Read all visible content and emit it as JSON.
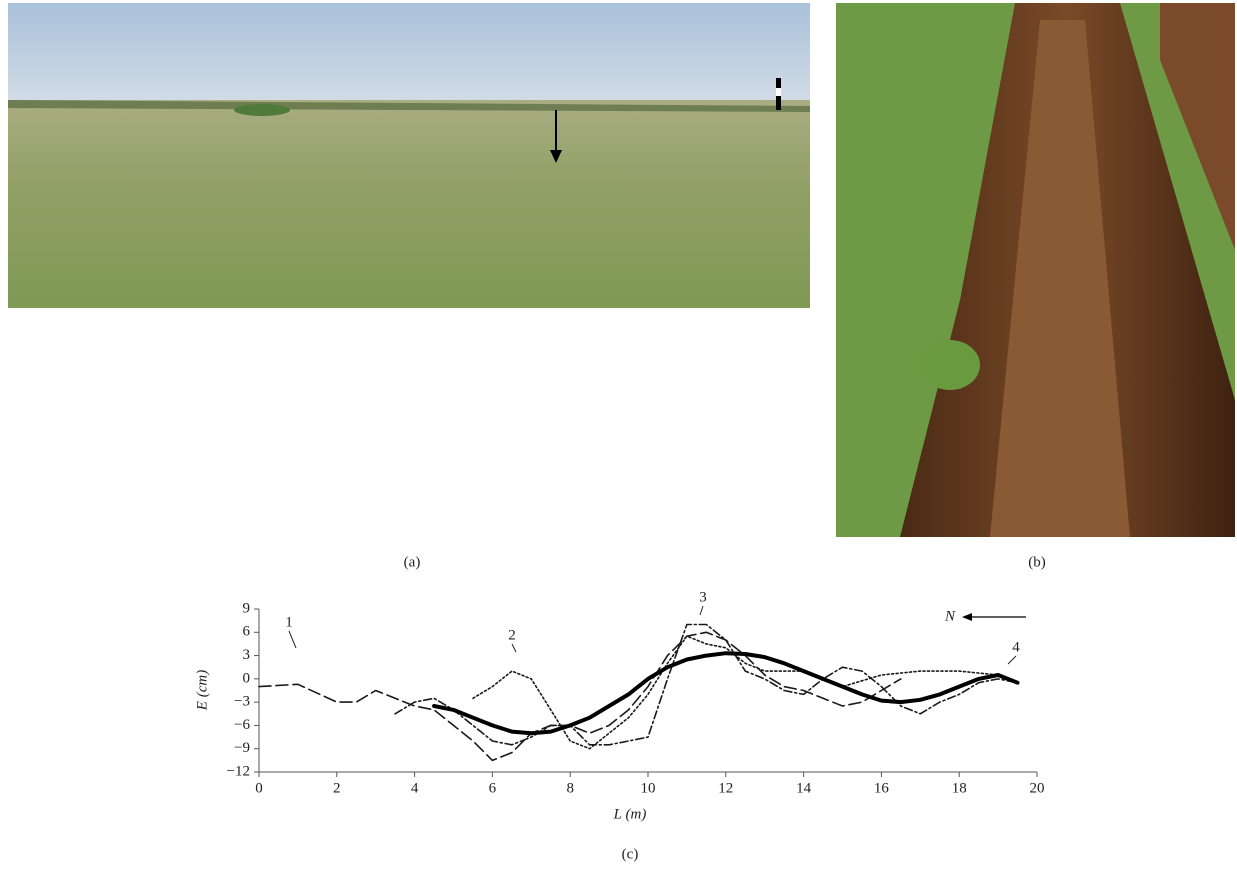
{
  "panel_labels": {
    "a": "(a)",
    "b": "(b)",
    "c": "(c)"
  },
  "chart_data": {
    "type": "line",
    "x_label": "L (m)",
    "y_label": "E (cm)",
    "annotation": "N",
    "xlim": [
      0,
      20
    ],
    "ylim": [
      -12,
      9
    ],
    "xticks": [
      0,
      2,
      4,
      6,
      8,
      10,
      12,
      14,
      16,
      18,
      20
    ],
    "yticks": [
      9,
      6,
      3,
      0,
      {
        "value": -3,
        "label": "−3"
      },
      {
        "value": -6,
        "label": "−6"
      },
      {
        "value": -9,
        "label": "−9"
      },
      {
        "value": -12,
        "label": "−12"
      }
    ],
    "grid": false,
    "series": [
      {
        "name": "1",
        "color": "#1a1a1a",
        "x": [
          0,
          1,
          2,
          2.5,
          3,
          3.5,
          4,
          4.5,
          5,
          5.5,
          6,
          6.5,
          7,
          7.5,
          8,
          8.5,
          9,
          9.5,
          10,
          10.5,
          11,
          11.5,
          12,
          12.5,
          13,
          13.5,
          14,
          14.5,
          15,
          15.5,
          16,
          16.5
        ],
        "values": [
          -1,
          -0.7,
          -3,
          -3,
          -1.5,
          -2.5,
          -3.5,
          -4,
          -6,
          -8,
          -10.5,
          -9.5,
          -7,
          -6,
          -6,
          -7,
          -6,
          -4,
          -1,
          3,
          5.5,
          6,
          5,
          3,
          0.5,
          -1,
          -1.5,
          -2.5,
          -3.5,
          -3,
          -1.5,
          0
        ]
      },
      {
        "name": "2",
        "color": "#1a1a1a",
        "x": [
          5.5,
          6,
          6.5,
          7,
          7.5,
          8,
          8.5,
          9,
          9.5,
          10,
          10.5,
          11,
          11.5,
          12,
          12.5,
          13,
          14,
          14.5,
          15,
          16,
          17,
          18,
          19,
          19.5
        ],
        "values": [
          -2.5,
          -1,
          1,
          0,
          -4,
          -8,
          -9,
          -7,
          -5,
          -2,
          2,
          5.5,
          4.5,
          4,
          2,
          1,
          1,
          0,
          -1,
          0.5,
          1,
          1,
          0.5,
          -0.5
        ]
      },
      {
        "name": "3",
        "color": "#1a1a1a",
        "x": [
          3.5,
          4,
          4.5,
          5,
          5.5,
          6,
          6.5,
          7,
          7.5,
          8,
          8.5,
          9,
          9.5,
          10,
          10.5,
          11,
          11.5,
          12,
          12.5,
          13,
          13.5,
          14,
          14.5,
          15,
          15.5,
          16,
          16.5,
          17,
          17.5,
          18,
          18.5,
          19,
          19.5
        ],
        "values": [
          -4.5,
          -3,
          -2.5,
          -4,
          -6,
          -8,
          -8.5,
          -7.5,
          -6,
          -6,
          -8.5,
          -8.5,
          -8,
          -7.5,
          0,
          7,
          7,
          5,
          1,
          0,
          -1.5,
          -2,
          0,
          1.5,
          1,
          -1,
          -3.5,
          -4.5,
          -3,
          -2,
          -0.5,
          0,
          -0.5
        ]
      },
      {
        "name": "4",
        "color": "#000000",
        "x": [
          4.5,
          5,
          5.5,
          6,
          6.5,
          7,
          7.5,
          8,
          8.5,
          9,
          9.5,
          10,
          10.5,
          11,
          11.5,
          12,
          12.5,
          13,
          13.5,
          14,
          14.5,
          15,
          15.5,
          16,
          16.5,
          17,
          17.5,
          18,
          18.5,
          19,
          19.5
        ],
        "values": [
          -3.5,
          -4,
          -5,
          -6,
          -6.8,
          -7,
          -6.8,
          -6,
          -5,
          -3.5,
          -2,
          0,
          1.5,
          2.5,
          3,
          3.3,
          3.2,
          2.8,
          2,
          1,
          0,
          -1,
          -2,
          -2.8,
          -3,
          -2.7,
          -2,
          -1,
          0,
          0.5,
          -0.5
        ]
      }
    ]
  }
}
